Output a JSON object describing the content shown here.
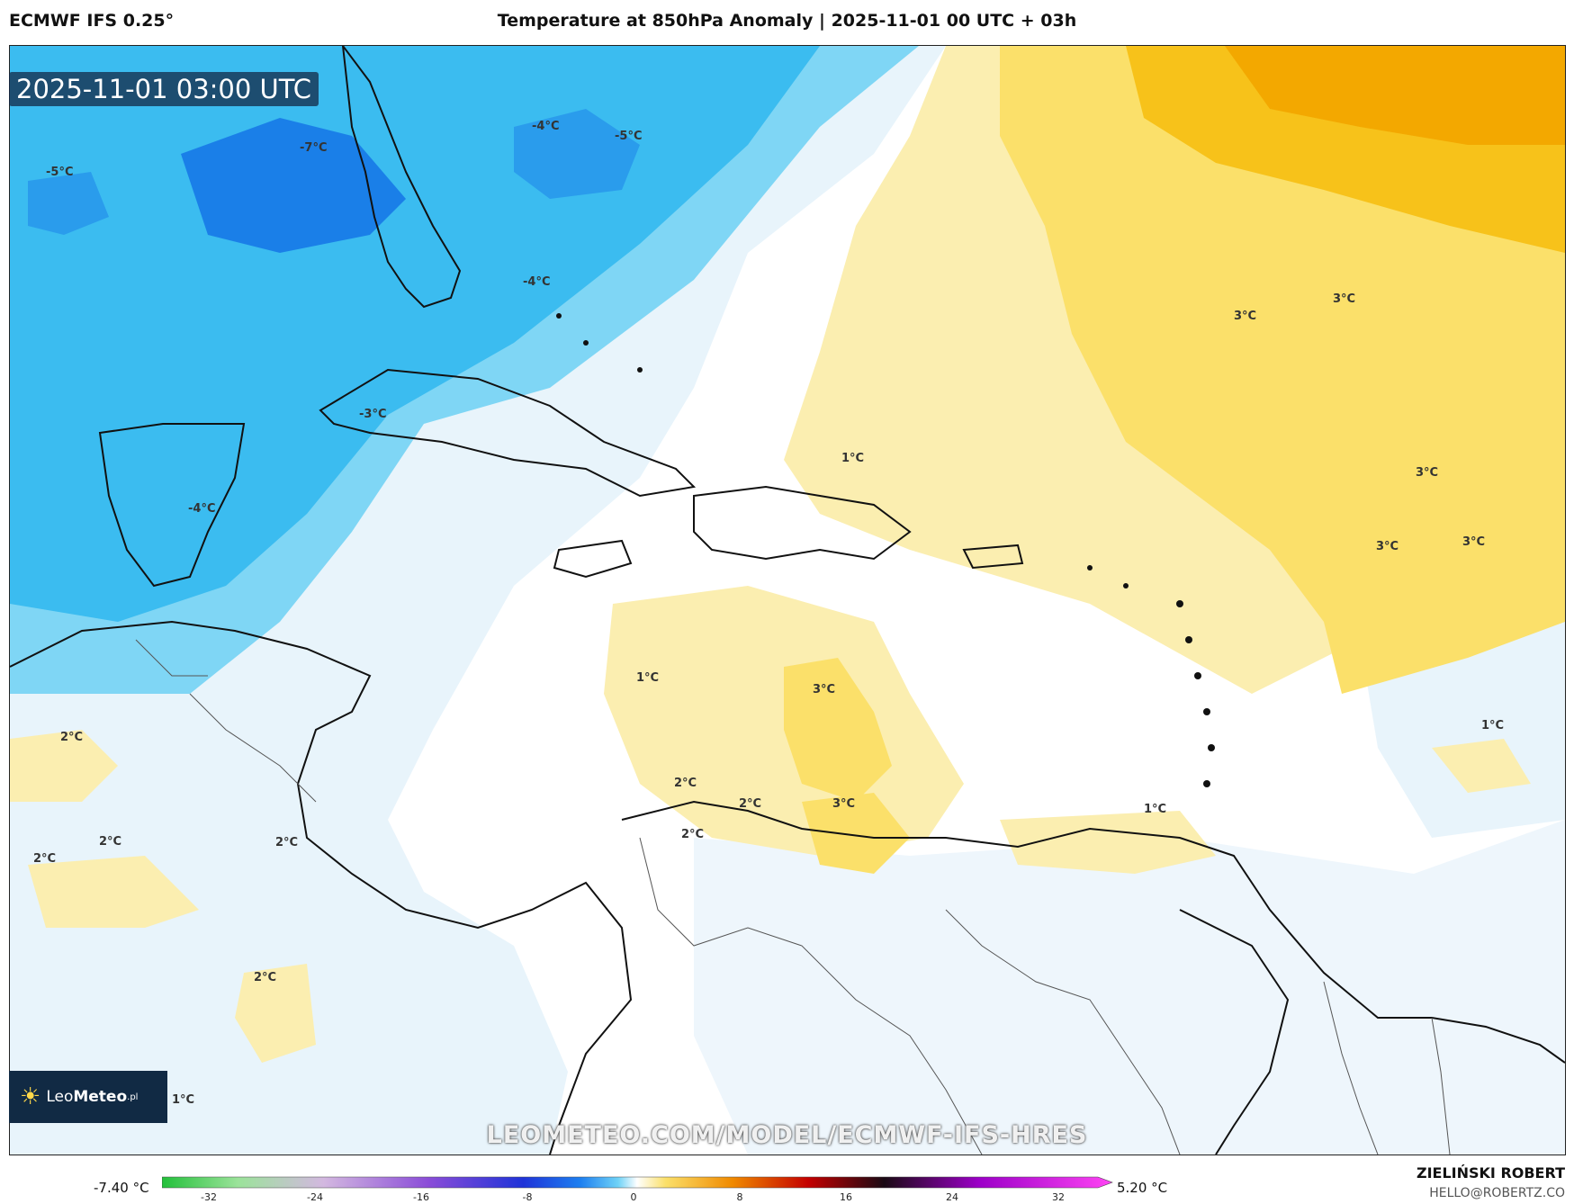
{
  "header": {
    "model": "ECMWF IFS 0.25°",
    "title": "Temperature at 850hPa Anomaly | 2025-11-01 00 UTC + 03h"
  },
  "map": {
    "timestamp": "2025-11-01 03:00 UTC",
    "watermark": "LEOMETEO.COM/MODEL/ECMWF-IFS-HRES",
    "labels": [
      "-5°C",
      "-7°C",
      "-4°C",
      "-5°C",
      "-4°C",
      "-3°C",
      "-4°C",
      "3°C",
      "3°C",
      "3°C",
      "3°C",
      "3°C",
      "1°C",
      "1°C",
      "3°C",
      "1°C",
      "2°C",
      "2°C",
      "2°C",
      "2°C",
      "2°C",
      "2°C",
      "2°C",
      "3°C",
      "2°C",
      "1°C",
      "1°C"
    ],
    "colors": {
      "strong_cold": "#1a7fe8",
      "cold": "#3bbcf0",
      "cool": "#7fd6f5",
      "slight_cool": "#e8f4fb",
      "slight_warm": "#fbeeb0",
      "warm": "#fbe06a",
      "hot": "#f7c21a",
      "hotter": "#f3a800"
    }
  },
  "logo": {
    "brand_light": "Leo",
    "brand_bold": "Meteo",
    "suffix": ".pl"
  },
  "legend": {
    "min_label": "-7.40 °C",
    "max_label": "5.20 °C",
    "ticks": [
      "-32",
      "-24",
      "-16",
      "-8",
      "0",
      "8",
      "16",
      "24",
      "32"
    ]
  },
  "credits": {
    "author": "ZIELIŃSKI ROBERT",
    "email": "HELLO@ROBERTZ.CO"
  }
}
